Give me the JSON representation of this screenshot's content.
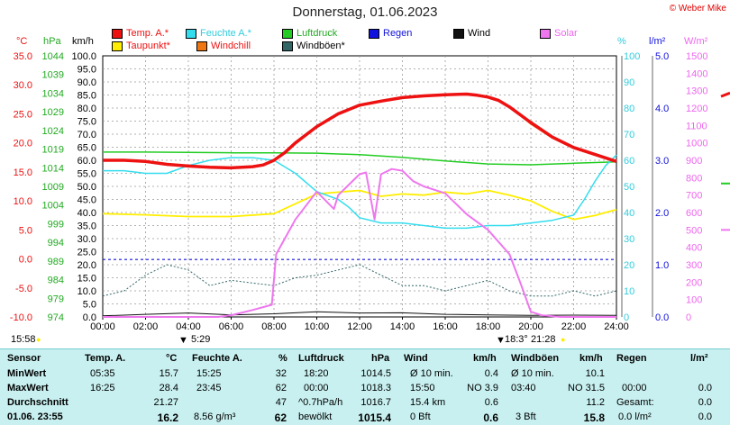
{
  "title": "Donnerstag, 01.06.2023",
  "copyright": "© Weber Mike",
  "legend": [
    {
      "label": "Temp. A.*",
      "color": "#ee1111"
    },
    {
      "label": "Feuchte A.*",
      "color": "#33ddee"
    },
    {
      "label": "Luftdruck",
      "color": "#22cc22"
    },
    {
      "label": "Regen",
      "color": "#1111dd"
    },
    {
      "label": "Wind",
      "color": "#111111"
    },
    {
      "label": "Solar",
      "color": "#ee77ee"
    },
    {
      "label": "Taupunkt*",
      "color": "#ffee00"
    },
    {
      "label": "Windchill",
      "color": "#ee7711"
    },
    {
      "label": "Windböen*",
      "color": "#336666"
    }
  ],
  "units": {
    "temp": "°C",
    "press": "hPa",
    "wind": "km/h",
    "hum": "%",
    "rain": "l/m²",
    "solar": "W/m²"
  },
  "sun": {
    "sunrise": "5:29",
    "sunset": "21:28",
    "left_time": "15:58",
    "mid_time": "18:3°"
  },
  "chart_data": {
    "type": "line",
    "x": [
      "00:00",
      "02:00",
      "04:00",
      "06:00",
      "08:00",
      "10:00",
      "12:00",
      "14:00",
      "16:00",
      "18:00",
      "20:00",
      "22:00",
      "24:00"
    ],
    "axes": {
      "temp": {
        "ticks": [
          "35.0",
          "30.0",
          "25.0",
          "20.0",
          "15.0",
          "10.0",
          "5.0",
          "0.0",
          "-5.0",
          "-10.0"
        ],
        "range": [
          -10,
          35
        ]
      },
      "press": {
        "ticks": [
          "1044",
          "1039",
          "1034",
          "1029",
          "1024",
          "1019",
          "1014",
          "1009",
          "1004",
          "999",
          "994",
          "989",
          "984",
          "979",
          "974"
        ],
        "range": [
          974,
          1044
        ]
      },
      "wind": {
        "ticks": [
          "100.0",
          "95.0",
          "90.0",
          "85.0",
          "80.0",
          "75.0",
          "70.0",
          "65.0",
          "60.0",
          "55.0",
          "50.0",
          "45.0",
          "40.0",
          "35.0",
          "30.0",
          "25.0",
          "20.0",
          "15.0",
          "10.0",
          "5.0",
          "0.0"
        ],
        "range": [
          0,
          100
        ]
      },
      "hum": {
        "ticks": [
          "100",
          "90",
          "80",
          "70",
          "60",
          "50",
          "40",
          "30",
          "20",
          "10",
          "0"
        ],
        "range": [
          0,
          100
        ]
      },
      "rain": {
        "ticks": [
          "5.0",
          "4.0",
          "3.0",
          "2.0",
          "1.0",
          "0.0"
        ],
        "range": [
          0,
          5
        ]
      },
      "solar": {
        "ticks": [
          "1500",
          "1400",
          "1300",
          "1200",
          "1100",
          "1000",
          "900",
          "800",
          "700",
          "600",
          "500",
          "400",
          "300",
          "200",
          "100",
          "0"
        ],
        "range": [
          0,
          1500
        ]
      }
    },
    "series": [
      {
        "name": "Temp. A.*",
        "axis": "temp",
        "color": "#ee1111",
        "width": 3.5,
        "t": [
          0,
          1,
          2,
          3,
          4,
          5,
          6,
          7,
          7.5,
          8,
          8.5,
          9,
          10,
          11,
          12,
          13,
          14,
          15,
          16,
          17,
          17.5,
          18,
          18.5,
          19,
          20,
          21,
          22,
          23,
          24
        ],
        "v": [
          17.0,
          17.0,
          16.8,
          16.3,
          16.0,
          15.8,
          15.7,
          15.9,
          16.2,
          17.0,
          18.3,
          20.0,
          22.8,
          25.0,
          26.5,
          27.2,
          27.8,
          28.1,
          28.3,
          28.4,
          28.2,
          27.9,
          27.3,
          26.2,
          23.5,
          21.0,
          19.2,
          18.0,
          16.8
        ]
      },
      {
        "name": "Windchill",
        "axis": "temp",
        "color": "#ee7711",
        "width": 1.2,
        "t": [
          0,
          1,
          2,
          3,
          4,
          5,
          6,
          7,
          7.5,
          8,
          8.5,
          9,
          10,
          11,
          12,
          13,
          14,
          15,
          16,
          17,
          17.5,
          18,
          18.5,
          19,
          20,
          21,
          22,
          23,
          24
        ],
        "v": [
          17.0,
          17.0,
          16.8,
          16.3,
          16.0,
          15.8,
          15.7,
          15.9,
          16.2,
          17.0,
          18.3,
          20.0,
          22.8,
          25.0,
          26.5,
          27.2,
          27.8,
          28.1,
          28.3,
          28.4,
          28.2,
          27.9,
          27.3,
          26.2,
          23.2,
          20.8,
          19.0,
          17.9,
          16.8
        ]
      },
      {
        "name": "Feuchte A.*",
        "axis": "hum",
        "color": "#33ddee",
        "width": 1.5,
        "t": [
          0,
          1,
          2,
          3,
          4,
          5,
          6,
          7,
          8,
          9,
          10,
          11,
          11.5,
          12,
          13,
          14,
          15,
          16,
          17,
          18,
          19,
          20,
          21,
          22,
          22.5,
          23,
          23.5,
          24
        ],
        "v": [
          56,
          56,
          55,
          55,
          58,
          60,
          61,
          61,
          60,
          55,
          48,
          45,
          42,
          38,
          36,
          36,
          35,
          34,
          34,
          35,
          35,
          36,
          37,
          39,
          45,
          52,
          58,
          62
        ]
      },
      {
        "name": "Luftdruck",
        "axis": "press",
        "color": "#22cc22",
        "width": 1.5,
        "t": [
          0,
          2,
          4,
          6,
          8,
          10,
          12,
          14,
          16,
          18,
          20,
          22,
          24
        ],
        "v": [
          1018.2,
          1018.2,
          1018.1,
          1018.0,
          1018.0,
          1017.9,
          1017.5,
          1016.8,
          1015.8,
          1015.0,
          1014.8,
          1015.2,
          1015.6
        ]
      },
      {
        "name": "Taupunkt*",
        "axis": "temp",
        "color": "#ffee00",
        "width": 1.8,
        "t": [
          0,
          2,
          4,
          6,
          8,
          9,
          10,
          11,
          12,
          13,
          14,
          15,
          16,
          17,
          18,
          19,
          20,
          21,
          22,
          23,
          24
        ],
        "v": [
          7.8,
          7.6,
          7.3,
          7.3,
          7.8,
          9.5,
          11.2,
          11.5,
          11.8,
          10.8,
          11.2,
          11.0,
          11.5,
          11.2,
          11.8,
          11.0,
          10.0,
          8.2,
          6.8,
          7.5,
          8.5
        ]
      },
      {
        "name": "Solar",
        "axis": "solar",
        "color": "#ee77ee",
        "width": 2,
        "t": [
          0,
          5.4,
          6,
          7,
          7.9,
          8.1,
          9,
          10,
          10.8,
          11,
          11.5,
          12,
          12.3,
          12.7,
          13,
          13.5,
          14,
          14.5,
          15,
          16,
          16.5,
          17,
          18,
          19,
          19.5,
          20,
          20.5,
          21.4,
          24
        ],
        "v": [
          0,
          0,
          10,
          40,
          70,
          360,
          560,
          720,
          620,
          700,
          760,
          820,
          830,
          560,
          820,
          850,
          840,
          780,
          750,
          710,
          650,
          590,
          500,
          360,
          200,
          30,
          10,
          0,
          0
        ]
      },
      {
        "name": "Windböen*",
        "axis": "wind",
        "color": "#336666",
        "width": 1,
        "dash": "2,2",
        "t": [
          0,
          1,
          2,
          3,
          4,
          5,
          6,
          7,
          8,
          9,
          10,
          11,
          12,
          13,
          14,
          15,
          16,
          17,
          18,
          19,
          20,
          21,
          22,
          23,
          24
        ],
        "v": [
          8,
          10,
          16,
          20,
          18,
          12,
          14,
          13,
          12,
          15,
          16,
          18,
          20,
          16,
          12,
          12,
          10,
          12,
          14,
          10,
          8,
          8,
          10,
          8,
          10
        ]
      },
      {
        "name": "Wind",
        "axis": "wind",
        "color": "#111111",
        "width": 1,
        "t": [
          0,
          2,
          4,
          6,
          8,
          10,
          12,
          14,
          16,
          18,
          20,
          22,
          24
        ],
        "v": [
          0.4,
          1.0,
          1.5,
          0.8,
          1.2,
          2.0,
          1.5,
          1.6,
          1.0,
          0.8,
          0.6,
          0.7,
          0.6
        ]
      },
      {
        "name": "Regen",
        "axis": "rain",
        "color": "#1111dd",
        "width": 1.2,
        "dash": "3,3",
        "t": [
          0,
          24
        ],
        "v": [
          1.1,
          1.1
        ]
      }
    ]
  },
  "stats": {
    "headers": [
      "Sensor",
      "Temp. A.",
      "°C",
      "Feuchte A.",
      "%",
      "Luftdruck",
      "hPa",
      "Wind",
      "km/h",
      "Windböen",
      "km/h",
      "Regen",
      "l/m²"
    ],
    "rows": [
      {
        "label": "MinWert",
        "temp_time": "05:35",
        "temp": "15.7",
        "hum_time": "15:25",
        "hum": "32",
        "press_time": "18:20",
        "press": "1014.5",
        "wind_time": "Ø 10 min.",
        "wind": "0.4",
        "gust_time": "Ø 10 min.",
        "gust": "10.1",
        "rain_time": "",
        "rain": ""
      },
      {
        "label": "MaxWert",
        "temp_time": "16:25",
        "temp": "28.4",
        "hum_time": "23:45",
        "hum": "62",
        "press_time": "00:00",
        "press": "1018.3",
        "wind_time": "15:50",
        "wind": "NO 3.9",
        "gust_time": "03:40",
        "gust": "NO 31.5",
        "rain_time": "00:00",
        "rain": "0.0"
      },
      {
        "label": "Durchschnitt",
        "temp_time": "",
        "temp": "21.27",
        "hum_time": "",
        "hum": "47",
        "press_time": "^0.7hPa/h",
        "press": "1016.7",
        "wind_time": "15.4 km",
        "wind": "0.6",
        "gust_time": "",
        "gust": "11.2",
        "rain_time": "Gesamt:",
        "rain": "0.0"
      },
      {
        "label": "01.06. 23:55",
        "temp_time": "",
        "temp": "16.2",
        "hum_time": "8.56 g/m³",
        "hum": "62",
        "press_time": "bewölkt",
        "press": "1015.4",
        "wind_time": "0 Bft",
        "wind": "0.6",
        "gust_time": "3 Bft",
        "gust": "15.8",
        "rain_time": "0.0 l/m²",
        "rain": "0.0"
      }
    ]
  }
}
